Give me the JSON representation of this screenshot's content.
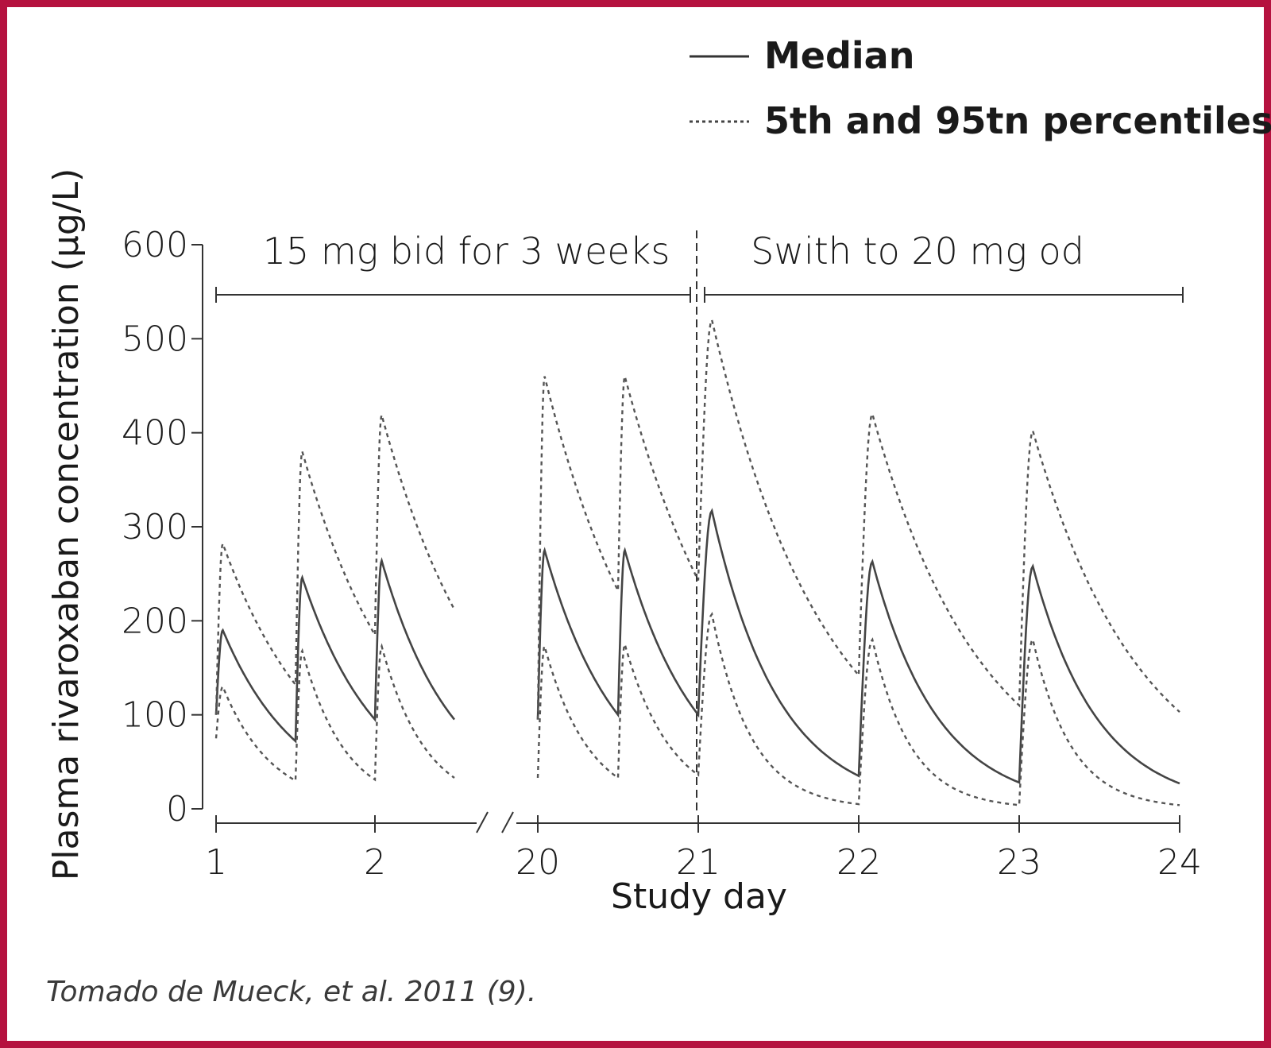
{
  "colors": {
    "frame": "#b5123f",
    "median": "#444444",
    "percentile": "#555555",
    "axis": "#333333"
  },
  "caption": "Tomado de Mueck, et al. 2011 (9).",
  "chart_data": {
    "type": "line",
    "title": "",
    "xlabel": "Study day",
    "ylabel": "Plasma rivaroxaban concentration (µg/L)",
    "ylim": [
      0,
      600
    ],
    "yticks": [
      "0",
      "100",
      "200",
      "300",
      "400",
      "500",
      "600"
    ],
    "xticks": [
      "1",
      "2",
      "20",
      "21",
      "22",
      "23",
      "24"
    ],
    "x_axis_break": "between day 2.5 and day 20",
    "grid": false,
    "legend": {
      "position": "top-right",
      "entries": [
        {
          "label": "Median",
          "style": "solid"
        },
        {
          "label": "5th and 95tn percentiles",
          "style": "dotted"
        }
      ]
    },
    "annotations": [
      {
        "text": "15 mg bid for 3 weeks",
        "x_range": [
          1,
          21
        ]
      },
      {
        "text": "Swith to 20 mg od",
        "x_range": [
          21,
          24
        ]
      }
    ],
    "dose_switch_day": 21,
    "series": [
      {
        "name": "Median",
        "style": "solid",
        "segments": [
          {
            "doses": [
              {
                "start": 1.0,
                "end": 1.5,
                "c0": 100,
                "peak": 190,
                "cend": 72
              },
              {
                "start": 1.5,
                "end": 2.0,
                "c0": 72,
                "peak": 246,
                "cend": 95
              },
              {
                "start": 2.0,
                "end": 2.5,
                "c0": 95,
                "peak": 264,
                "cend": 95
              }
            ]
          },
          {
            "doses": [
              {
                "start": 20.0,
                "end": 20.5,
                "c0": 95,
                "peak": 275,
                "cend": 100
              },
              {
                "start": 20.5,
                "end": 21.0,
                "c0": 100,
                "peak": 275,
                "cend": 100
              },
              {
                "start": 21.0,
                "end": 22.0,
                "c0": 100,
                "peak": 317,
                "cend": 35
              },
              {
                "start": 22.0,
                "end": 23.0,
                "c0": 35,
                "peak": 263,
                "cend": 28
              },
              {
                "start": 23.0,
                "end": 24.0,
                "c0": 28,
                "peak": 258,
                "cend": 27
              }
            ]
          }
        ]
      },
      {
        "name": "95th percentile",
        "style": "dotted",
        "segments": [
          {
            "doses": [
              {
                "start": 1.0,
                "end": 1.5,
                "c0": 100,
                "peak": 282,
                "cend": 132
              },
              {
                "start": 1.5,
                "end": 2.0,
                "c0": 132,
                "peak": 380,
                "cend": 185
              },
              {
                "start": 2.0,
                "end": 2.5,
                "c0": 185,
                "peak": 419,
                "cend": 212
              }
            ]
          },
          {
            "doses": [
              {
                "start": 20.0,
                "end": 20.5,
                "c0": 95,
                "peak": 460,
                "cend": 232
              },
              {
                "start": 20.5,
                "end": 21.0,
                "c0": 232,
                "peak": 460,
                "cend": 243
              },
              {
                "start": 21.0,
                "end": 22.0,
                "c0": 243,
                "peak": 520,
                "cend": 142
              },
              {
                "start": 22.0,
                "end": 23.0,
                "c0": 142,
                "peak": 420,
                "cend": 110
              },
              {
                "start": 23.0,
                "end": 24.0,
                "c0": 110,
                "peak": 402,
                "cend": 103
              }
            ]
          }
        ]
      },
      {
        "name": "5th percentile",
        "style": "dotted",
        "segments": [
          {
            "doses": [
              {
                "start": 1.0,
                "end": 1.5,
                "c0": 75,
                "peak": 130,
                "cend": 30
              },
              {
                "start": 1.5,
                "end": 2.0,
                "c0": 30,
                "peak": 168,
                "cend": 31
              },
              {
                "start": 2.0,
                "end": 2.5,
                "c0": 31,
                "peak": 173,
                "cend": 33
              }
            ]
          },
          {
            "doses": [
              {
                "start": 20.0,
                "end": 20.5,
                "c0": 33,
                "peak": 173,
                "cend": 33
              },
              {
                "start": 20.5,
                "end": 21.0,
                "c0": 33,
                "peak": 175,
                "cend": 36
              },
              {
                "start": 21.0,
                "end": 22.0,
                "c0": 36,
                "peak": 207,
                "cend": 5
              },
              {
                "start": 22.0,
                "end": 23.0,
                "c0": 5,
                "peak": 180,
                "cend": 4
              },
              {
                "start": 23.0,
                "end": 24.0,
                "c0": 4,
                "peak": 180,
                "cend": 4
              }
            ]
          }
        ]
      }
    ]
  }
}
